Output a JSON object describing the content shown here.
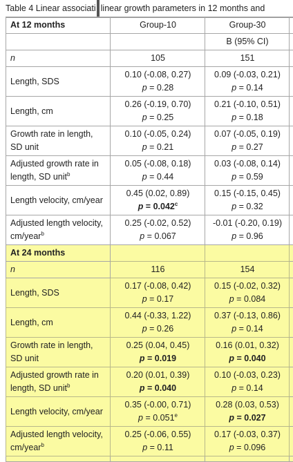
{
  "caption": {
    "left": "Table 4 Linear associati",
    "right": "linear growth parameters in 12 months and"
  },
  "header": {
    "section_12": "At 12 months",
    "group10": "Group-10",
    "group30": "Group-30",
    "ci": "B (95% CI)"
  },
  "n_label": "n",
  "rows_12": [
    {
      "label": "Length, SDS",
      "g10": "0.10 (-0.08, 0.27)",
      "g10p": "p = 0.28",
      "g30": "0.09 (-0.03, 0.21)",
      "g30p": "p = 0.14"
    },
    {
      "label": "Length, cm",
      "g10": "0.26 (-0.19, 0.70)",
      "g10p": "p = 0.25",
      "g30": "0.21 (-0.10, 0.51)",
      "g30p": "p = 0.18"
    },
    {
      "label": "Growth rate in length, SD unit",
      "g10": "0.10 (-0.05, 0.24)",
      "g10p": "p = 0.21",
      "g30": "0.07 (-0.05, 0.19)",
      "g30p": "p = 0.27"
    },
    {
      "label": "Adjusted growth rate in length, SD unit",
      "sup": "b",
      "g10": "0.05 (-0.08, 0.18)",
      "g10p": "p = 0.44",
      "g30": "0.03 (-0.08, 0.14)",
      "g30p": "p = 0.59"
    },
    {
      "label": "Length velocity, cm/year",
      "g10": "0.45 (0.02, 0.89)",
      "g10p": "p = 0.042",
      "g10p_sup": "c",
      "g30": "0.15 (-0.15, 0.45)",
      "g30p": "p = 0.32"
    },
    {
      "label": "Adjusted length velocity, cm/year",
      "sup": "b",
      "g10": "0.25 (-0.02, 0.52)",
      "g10p": "p = 0.067",
      "g30": "-0.01 (-0.20, 0.19)",
      "g30p": "p = 0.96"
    }
  ],
  "n_12": {
    "g10": "105",
    "g30": "151"
  },
  "section_24": "At 24 months",
  "n_24": {
    "g10": "116",
    "g30": "154"
  },
  "rows_24": [
    {
      "label": "Length, SDS",
      "g10": "0.17 (-0.08, 0.42)",
      "g10p": "p = 0.17",
      "g30": "0.15 (-0.02, 0.32)",
      "g30p": "p = 0.084"
    },
    {
      "label": "Length, cm",
      "g10": "0.44 (-0.33, 1.22)",
      "g10p": "p = 0.26",
      "g30": "0.37 (-0.13, 0.86)",
      "g30p": "p = 0.14"
    },
    {
      "label": "Growth rate in length, SD unit",
      "g10": "0.25 (0.04, 0.45)",
      "g10p": "p = 0.019",
      "g30": "0.16 (0.01, 0.32)",
      "g30p": "p = 0.040"
    },
    {
      "label": "Adjusted growth rate in length, SD unit",
      "sup": "b",
      "g10": "0.20 (0.01, 0.39)",
      "g10p": "p = 0.040",
      "g30": "0.10 (-0.03, 0.23)",
      "g30p": "p = 0.14"
    },
    {
      "label": "Length velocity, cm/year",
      "g10": "0.35 (-0.00, 0.71)",
      "g10p": "p = 0.051",
      "g10p_sup": "e",
      "g30": "0.28 (0.03, 0.53)",
      "g30p": "p = 0.027"
    },
    {
      "label": "Adjusted length velocity, cm/year",
      "sup": "b",
      "g10": "0.25 (-0.06, 0.55)",
      "g10p": "p = 0.11",
      "g30": "0.17 (-0.03, 0.37)",
      "g30p": "p = 0.096"
    }
  ],
  "highlight_color": "#fbfba2"
}
